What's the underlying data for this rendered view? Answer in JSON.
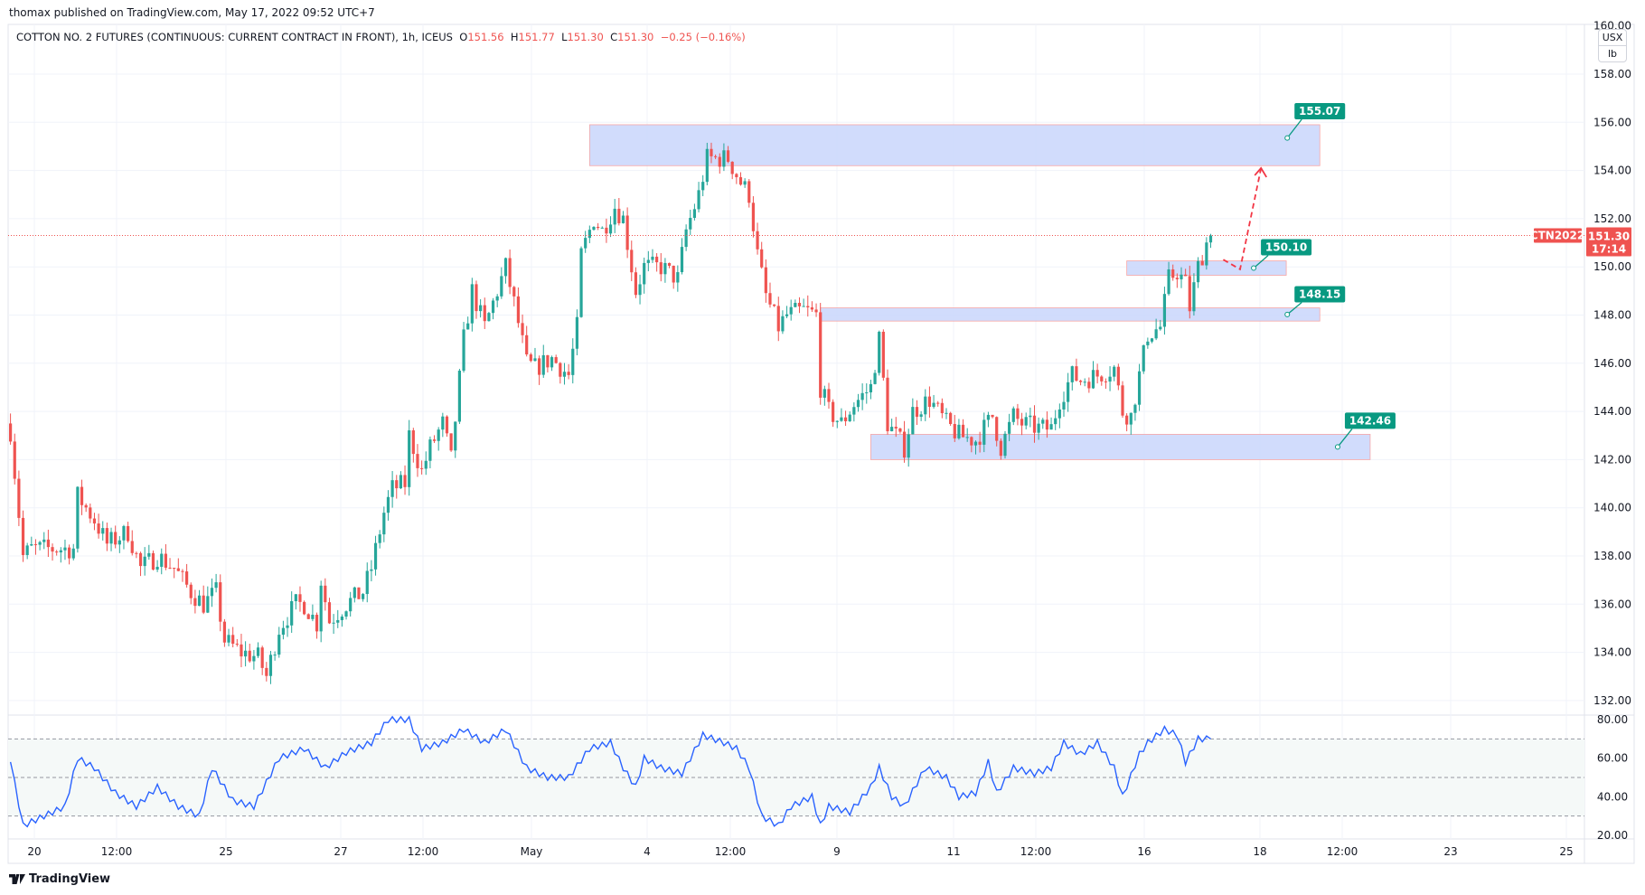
{
  "published": "thomax published on TradingView.com, May 17, 2022 09:52 UTC+7",
  "legend": {
    "symbol": "COTTON NO. 2 FUTURES (CONTINUOUS: CURRENT CONTRACT IN FRONT), 1h, ICEUS",
    "o_label": "O",
    "o": "151.56",
    "h_label": "H",
    "h": "151.77",
    "l_label": "L",
    "l": "151.30",
    "c_label": "C",
    "c": "151.30",
    "change": "−0.25 (−0.16%)"
  },
  "unit": {
    "currency": "USX",
    "per": "lb"
  },
  "branding": "TradingView",
  "colors": {
    "up": "#26a69a",
    "down": "#ef5350",
    "zone": "#c9d6fb",
    "tag": "#089981",
    "price_line": "#ef5350",
    "rsi": "#2962ff"
  },
  "chart_data": [
    {
      "type": "candlestick",
      "timeframe": "1h",
      "x_unit": "bar index (hourly)",
      "price_axis": {
        "ticks": [
          "160.00",
          "158.00",
          "156.00",
          "154.00",
          "152.00",
          "150.00",
          "148.00",
          "146.00",
          "144.00",
          "142.00",
          "140.00",
          "138.00",
          "136.00",
          "134.00",
          "132.00"
        ],
        "range": [
          131.5,
          160.5
        ]
      },
      "time_axis": {
        "ticks": [
          "20",
          "12:00",
          "25",
          "27",
          "12:00",
          "May",
          "4",
          "12:00",
          "9",
          "11",
          "12:00",
          "16",
          "18",
          "12:00",
          "23",
          "25"
        ]
      },
      "close_path": [
        [
          0,
          143.2
        ],
        [
          3,
          138
        ],
        [
          5,
          138.3
        ],
        [
          15,
          138.3
        ],
        [
          16,
          140.5
        ],
        [
          20,
          139.5
        ],
        [
          23,
          138.5
        ],
        [
          28,
          139
        ],
        [
          31,
          137.5
        ],
        [
          35,
          138
        ],
        [
          39,
          137.5
        ],
        [
          43,
          136.5
        ],
        [
          46,
          136
        ],
        [
          49,
          136.5
        ],
        [
          51,
          134.5
        ],
        [
          55,
          134
        ],
        [
          59,
          133.8
        ],
        [
          61,
          133
        ],
        [
          64,
          135
        ],
        [
          68,
          136
        ],
        [
          70,
          136
        ],
        [
          73,
          135.2
        ],
        [
          74,
          137
        ],
        [
          76,
          135.3
        ],
        [
          80,
          136
        ],
        [
          84,
          136.5
        ],
        [
          86,
          137.5
        ],
        [
          89,
          139.8
        ],
        [
          91,
          140.8
        ],
        [
          94,
          141
        ],
        [
          95,
          143
        ],
        [
          98,
          141.5
        ],
        [
          100,
          142.5
        ],
        [
          103,
          143.5
        ],
        [
          105,
          142
        ],
        [
          108,
          147
        ],
        [
          110,
          149
        ],
        [
          113,
          147.5
        ],
        [
          115,
          148.5
        ],
        [
          118,
          150
        ],
        [
          120,
          148.5
        ],
        [
          123,
          146
        ],
        [
          125,
          145.8
        ],
        [
          129,
          146.2
        ],
        [
          133,
          145.5
        ],
        [
          135,
          147.5
        ],
        [
          136,
          150.5
        ],
        [
          139,
          152
        ],
        [
          141,
          151.5
        ],
        [
          144,
          152.5
        ],
        [
          146,
          152
        ],
        [
          149,
          149
        ],
        [
          151,
          150
        ],
        [
          155,
          150
        ],
        [
          159,
          149.5
        ],
        [
          161,
          151.5
        ],
        [
          164,
          153
        ],
        [
          166,
          154.5
        ],
        [
          169,
          154.5
        ],
        [
          171,
          154.5
        ],
        [
          174,
          153.5
        ],
        [
          176,
          153
        ],
        [
          178,
          150.5
        ],
        [
          180,
          148.8
        ],
        [
          183,
          147.5
        ],
        [
          185,
          148
        ],
        [
          189,
          148.2
        ],
        [
          192,
          148
        ],
        [
          193,
          145
        ],
        [
          195,
          144
        ],
        [
          198,
          143.5
        ],
        [
          201,
          144.3
        ],
        [
          205,
          145
        ],
        [
          207,
          147
        ],
        [
          209,
          143.5
        ],
        [
          213,
          142.5
        ],
        [
          215,
          144
        ],
        [
          219,
          144.5
        ],
        [
          223,
          143.5
        ],
        [
          226,
          143
        ],
        [
          230,
          142.8
        ],
        [
          234,
          143.8
        ],
        [
          236,
          142.5
        ],
        [
          239,
          143.8
        ],
        [
          241,
          143.5
        ],
        [
          245,
          143.3
        ],
        [
          248,
          143.3
        ],
        [
          250,
          144.5
        ],
        [
          253,
          145.5
        ],
        [
          255,
          145.3
        ],
        [
          259,
          145.5
        ],
        [
          263,
          145.8
        ],
        [
          265,
          144
        ],
        [
          267,
          143.8
        ],
        [
          269,
          145.5
        ],
        [
          271,
          147.2
        ],
        [
          274,
          147.5
        ],
        [
          276,
          149.5
        ],
        [
          278,
          149.8
        ],
        [
          280,
          149.3
        ],
        [
          281,
          148.3
        ],
        [
          283,
          150
        ],
        [
          285,
          151
        ],
        [
          286,
          151.3
        ]
      ],
      "last_price": {
        "symbol_tag": "CTN2022",
        "price": "151.30",
        "countdown": "17:14"
      },
      "zones": [
        {
          "from_bar": 138,
          "to_bar": 312,
          "low": 154.2,
          "high": 155.9,
          "label": "155.07"
        },
        {
          "from_bar": 266,
          "to_bar": 304,
          "low": 149.65,
          "high": 150.25,
          "label": "150.10"
        },
        {
          "from_bar": 193,
          "to_bar": 312,
          "low": 147.75,
          "high": 148.3,
          "label": "148.15"
        },
        {
          "from_bar": 205,
          "to_bar": 324,
          "low": 142.0,
          "high": 143.05,
          "label": "142.46"
        }
      ],
      "projection": [
        [
          289,
          150.3
        ],
        [
          293,
          149.9
        ],
        [
          298,
          154.1
        ]
      ]
    },
    {
      "type": "line",
      "name": "",
      "y_axis": {
        "ticks": [
          "80.00",
          "60.00",
          "40.00",
          "20.00"
        ],
        "range": [
          20,
          80
        ]
      },
      "bands": [
        70,
        50,
        30
      ],
      "series": [
        [
          0,
          58
        ],
        [
          3,
          25
        ],
        [
          8,
          30
        ],
        [
          13,
          35
        ],
        [
          16,
          60
        ],
        [
          20,
          55
        ],
        [
          25,
          42
        ],
        [
          30,
          35
        ],
        [
          35,
          45
        ],
        [
          40,
          35
        ],
        [
          45,
          30
        ],
        [
          48,
          55
        ],
        [
          53,
          38
        ],
        [
          58,
          35
        ],
        [
          64,
          60
        ],
        [
          70,
          65
        ],
        [
          75,
          55
        ],
        [
          80,
          63
        ],
        [
          86,
          68
        ],
        [
          90,
          80
        ],
        [
          95,
          80
        ],
        [
          98,
          65
        ],
        [
          103,
          68
        ],
        [
          108,
          75
        ],
        [
          113,
          68
        ],
        [
          118,
          75
        ],
        [
          123,
          55
        ],
        [
          128,
          50
        ],
        [
          133,
          50
        ],
        [
          138,
          65
        ],
        [
          143,
          68
        ],
        [
          146,
          55
        ],
        [
          149,
          45
        ],
        [
          151,
          60
        ],
        [
          155,
          55
        ],
        [
          160,
          52
        ],
        [
          165,
          72
        ],
        [
          170,
          68
        ],
        [
          173,
          65
        ],
        [
          176,
          55
        ],
        [
          179,
          30
        ],
        [
          183,
          25
        ],
        [
          186,
          35
        ],
        [
          191,
          40
        ],
        [
          193,
          25
        ],
        [
          195,
          35
        ],
        [
          200,
          32
        ],
        [
          205,
          45
        ],
        [
          207,
          55
        ],
        [
          210,
          40
        ],
        [
          213,
          35
        ],
        [
          218,
          55
        ],
        [
          223,
          50
        ],
        [
          226,
          40
        ],
        [
          230,
          42
        ],
        [
          233,
          58
        ],
        [
          235,
          42
        ],
        [
          239,
          55
        ],
        [
          244,
          52
        ],
        [
          248,
          55
        ],
        [
          251,
          68
        ],
        [
          255,
          62
        ],
        [
          259,
          68
        ],
        [
          263,
          55
        ],
        [
          265,
          40
        ],
        [
          269,
          62
        ],
        [
          271,
          68
        ],
        [
          275,
          75
        ],
        [
          278,
          72
        ],
        [
          280,
          58
        ],
        [
          283,
          70
        ],
        [
          286,
          70
        ]
      ]
    }
  ]
}
